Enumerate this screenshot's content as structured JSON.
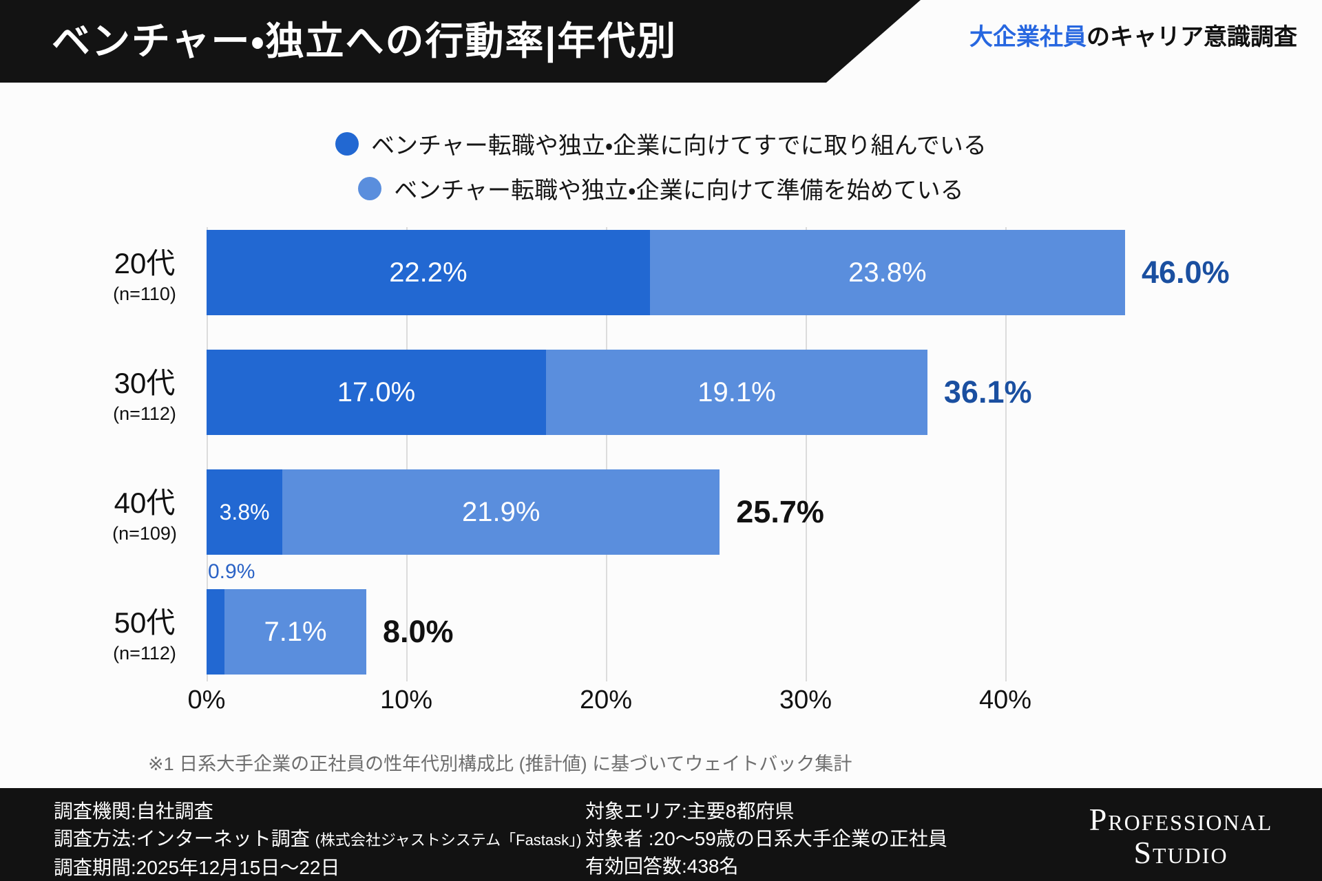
{
  "header": {
    "title": "ベンチャー・独立への行動率|年代別",
    "subtitle_highlight": "大企業社員",
    "subtitle_rest": "のキャリア意識調査"
  },
  "legend": [
    {
      "label": "ベンチャー転職や独立・企業に向けてすでに取り組んでいる",
      "color": "#2268d2"
    },
    {
      "label": "ベンチャー転職や独立・企業に向けて準備を始めている",
      "color": "#5a8edd"
    }
  ],
  "chart_data": {
    "type": "bar",
    "orientation": "horizontal",
    "stacked": true,
    "categories": [
      "20代",
      "30代",
      "40代",
      "50代"
    ],
    "category_notes": [
      "(n=110)",
      "(n=112)",
      "(n=109)",
      "(n=112)"
    ],
    "series": [
      {
        "name": "ベンチャー転職や独立・企業に向けてすでに取り組んでいる",
        "color": "#2268d2",
        "values": [
          22.2,
          17.0,
          3.8,
          0.9
        ]
      },
      {
        "name": "ベンチャー転職や独立・企業に向けて準備を始めている",
        "color": "#5a8edd",
        "values": [
          23.8,
          19.1,
          21.9,
          7.1
        ]
      }
    ],
    "totals": [
      46.0,
      36.1,
      25.7,
      8.0
    ],
    "total_labels": [
      "46.0%",
      "36.1%",
      "25.7%",
      "8.0%"
    ],
    "total_colors": [
      "#1a4fa0",
      "#1a4fa0",
      "#111111",
      "#111111"
    ],
    "x_ticks": [
      "0%",
      "10%",
      "20%",
      "30%",
      "40%"
    ],
    "xlim": [
      0,
      50
    ],
    "grid": true,
    "legend_position": "top"
  },
  "footnote": "※1 日系大手企業の正社員の性年代別構成比 (推計値) に基づいてウェイトバック集計",
  "footer": {
    "left_rows": [
      {
        "text": "調査機関:自社調査",
        "small": ""
      },
      {
        "text": "調査方法:インターネット調査",
        "small": "(株式会社ジャストシステム「Fastask」)"
      },
      {
        "text": "調査期間:2025年12月15日〜22日",
        "small": ""
      }
    ],
    "mid_rows": [
      {
        "text": "対象エリア:主要8都府県"
      },
      {
        "text": "対象者  :20〜59歳の日系大手企業の正社員"
      },
      {
        "text": "有効回答数:438名"
      }
    ],
    "logo_line1": "Professional",
    "logo_line2": "Studio"
  }
}
